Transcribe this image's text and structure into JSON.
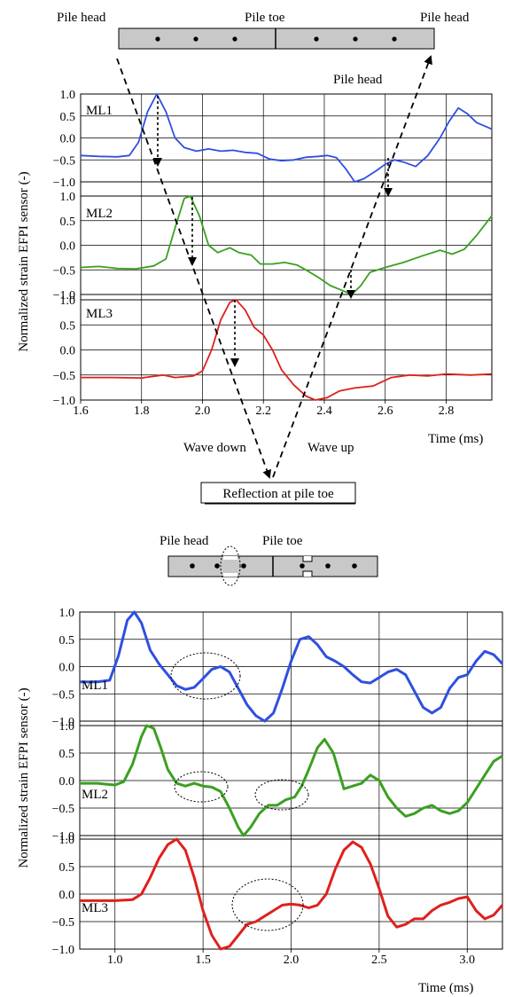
{
  "chart_data": [
    {
      "type": "line",
      "panel": "top",
      "labels": {
        "pile_head_left": "Pile head",
        "pile_toe": "Pile toe",
        "pile_head_right": "Pile head",
        "pile_head_upper": "Pile head",
        "wave_down": "Wave down",
        "wave_up": "Wave up",
        "reflection": "Reflection at pile toe"
      },
      "ylabel": "Normalized strain EFPI sensor (-)",
      "xlabel": "Time (ms)",
      "xlim": [
        1.6,
        2.95
      ],
      "x_ticks": [
        {
          "v": 1.6,
          "label": "1.6"
        },
        {
          "v": 1.8,
          "label": "1.8"
        },
        {
          "v": 2.0,
          "label": "2.0"
        },
        {
          "v": 2.2,
          "label": "2.2"
        },
        {
          "v": 2.4,
          "label": "2.4"
        },
        {
          "v": 2.6,
          "label": "2.6"
        },
        {
          "v": 2.8,
          "label": "2.8"
        }
      ],
      "y_tick_labels": [
        "1.0",
        "0.5",
        "0.0",
        "−0.5",
        "−1.0"
      ],
      "grid": true,
      "series": [
        {
          "name": "ML1",
          "color": "#2f4fe0",
          "points": [
            [
              1.6,
              -0.4
            ],
            [
              1.66,
              -0.42
            ],
            [
              1.72,
              -0.43
            ],
            [
              1.76,
              -0.4
            ],
            [
              1.79,
              -0.1
            ],
            [
              1.82,
              0.6
            ],
            [
              1.85,
              1.0
            ],
            [
              1.88,
              0.6
            ],
            [
              1.91,
              0.0
            ],
            [
              1.94,
              -0.22
            ],
            [
              1.98,
              -0.3
            ],
            [
              2.02,
              -0.25
            ],
            [
              2.06,
              -0.3
            ],
            [
              2.1,
              -0.28
            ],
            [
              2.14,
              -0.33
            ],
            [
              2.18,
              -0.35
            ],
            [
              2.22,
              -0.48
            ],
            [
              2.26,
              -0.52
            ],
            [
              2.3,
              -0.5
            ],
            [
              2.34,
              -0.44
            ],
            [
              2.38,
              -0.42
            ],
            [
              2.41,
              -0.4
            ],
            [
              2.44,
              -0.45
            ],
            [
              2.47,
              -0.7
            ],
            [
              2.5,
              -1.0
            ],
            [
              2.53,
              -0.93
            ],
            [
              2.57,
              -0.75
            ],
            [
              2.6,
              -0.6
            ],
            [
              2.63,
              -0.5
            ],
            [
              2.66,
              -0.55
            ],
            [
              2.7,
              -0.65
            ],
            [
              2.74,
              -0.4
            ],
            [
              2.78,
              0.0
            ],
            [
              2.81,
              0.38
            ],
            [
              2.84,
              0.68
            ],
            [
              2.87,
              0.55
            ],
            [
              2.9,
              0.35
            ],
            [
              2.95,
              0.2
            ]
          ]
        },
        {
          "name": "ML2",
          "color": "#3aa020",
          "points": [
            [
              1.6,
              -0.45
            ],
            [
              1.66,
              -0.43
            ],
            [
              1.72,
              -0.47
            ],
            [
              1.78,
              -0.48
            ],
            [
              1.84,
              -0.42
            ],
            [
              1.88,
              -0.28
            ],
            [
              1.91,
              0.35
            ],
            [
              1.94,
              0.95
            ],
            [
              1.96,
              1.0
            ],
            [
              1.99,
              0.6
            ],
            [
              2.02,
              0.0
            ],
            [
              2.05,
              -0.15
            ],
            [
              2.09,
              -0.05
            ],
            [
              2.12,
              -0.15
            ],
            [
              2.16,
              -0.2
            ],
            [
              2.19,
              -0.38
            ],
            [
              2.23,
              -0.38
            ],
            [
              2.27,
              -0.35
            ],
            [
              2.31,
              -0.4
            ],
            [
              2.34,
              -0.5
            ],
            [
              2.38,
              -0.65
            ],
            [
              2.42,
              -0.82
            ],
            [
              2.46,
              -0.92
            ],
            [
              2.49,
              -1.0
            ],
            [
              2.52,
              -0.82
            ],
            [
              2.55,
              -0.55
            ],
            [
              2.6,
              -0.45
            ],
            [
              2.66,
              -0.35
            ],
            [
              2.72,
              -0.22
            ],
            [
              2.78,
              -0.1
            ],
            [
              2.82,
              -0.18
            ],
            [
              2.86,
              -0.08
            ],
            [
              2.9,
              0.2
            ],
            [
              2.95,
              0.6
            ]
          ]
        },
        {
          "name": "ML3",
          "color": "#e0201c",
          "points": [
            [
              1.6,
              -0.55
            ],
            [
              1.7,
              -0.55
            ],
            [
              1.8,
              -0.56
            ],
            [
              1.87,
              -0.5
            ],
            [
              1.91,
              -0.55
            ],
            [
              1.97,
              -0.52
            ],
            [
              2.0,
              -0.42
            ],
            [
              2.03,
              0.0
            ],
            [
              2.06,
              0.6
            ],
            [
              2.09,
              0.95
            ],
            [
              2.11,
              1.0
            ],
            [
              2.14,
              0.8
            ],
            [
              2.17,
              0.45
            ],
            [
              2.2,
              0.3
            ],
            [
              2.23,
              0.0
            ],
            [
              2.26,
              -0.4
            ],
            [
              2.3,
              -0.7
            ],
            [
              2.34,
              -0.92
            ],
            [
              2.37,
              -1.0
            ],
            [
              2.41,
              -0.95
            ],
            [
              2.45,
              -0.82
            ],
            [
              2.5,
              -0.76
            ],
            [
              2.56,
              -0.72
            ],
            [
              2.62,
              -0.55
            ],
            [
              2.68,
              -0.5
            ],
            [
              2.74,
              -0.52
            ],
            [
              2.8,
              -0.48
            ],
            [
              2.88,
              -0.5
            ],
            [
              2.95,
              -0.48
            ]
          ]
        }
      ]
    },
    {
      "type": "line",
      "panel": "bottom",
      "labels": {
        "pile_head": "Pile head",
        "pile_toe": "Pile toe"
      },
      "ylabel": "Normalized strain EFPI sensor (-)",
      "xlabel": "Time (ms)",
      "xlim": [
        0.8,
        3.2
      ],
      "x_ticks": [
        {
          "v": 1.0,
          "label": "1.0"
        },
        {
          "v": 1.5,
          "label": "1.5"
        },
        {
          "v": 2.0,
          "label": "2.0"
        },
        {
          "v": 2.5,
          "label": "2.5"
        },
        {
          "v": 3.0,
          "label": "3.0"
        }
      ],
      "y_tick_labels": [
        "1.0",
        "0.5",
        "0.0",
        "−0.5",
        "−1.0"
      ],
      "grid": true,
      "series": [
        {
          "name": "ML1",
          "color": "#2f4fe0",
          "points": [
            [
              0.8,
              -0.28
            ],
            [
              0.9,
              -0.28
            ],
            [
              0.97,
              -0.25
            ],
            [
              1.02,
              0.2
            ],
            [
              1.07,
              0.85
            ],
            [
              1.11,
              1.0
            ],
            [
              1.15,
              0.8
            ],
            [
              1.2,
              0.3
            ],
            [
              1.25,
              0.05
            ],
            [
              1.3,
              -0.15
            ],
            [
              1.35,
              -0.35
            ],
            [
              1.4,
              -0.42
            ],
            [
              1.45,
              -0.38
            ],
            [
              1.5,
              -0.22
            ],
            [
              1.55,
              -0.05
            ],
            [
              1.6,
              0.0
            ],
            [
              1.65,
              -0.1
            ],
            [
              1.7,
              -0.4
            ],
            [
              1.75,
              -0.7
            ],
            [
              1.8,
              -0.9
            ],
            [
              1.85,
              -1.0
            ],
            [
              1.9,
              -0.85
            ],
            [
              1.95,
              -0.4
            ],
            [
              2.0,
              0.1
            ],
            [
              2.05,
              0.5
            ],
            [
              2.1,
              0.55
            ],
            [
              2.15,
              0.4
            ],
            [
              2.2,
              0.18
            ],
            [
              2.25,
              0.1
            ],
            [
              2.3,
              0.0
            ],
            [
              2.35,
              -0.15
            ],
            [
              2.4,
              -0.28
            ],
            [
              2.45,
              -0.3
            ],
            [
              2.5,
              -0.2
            ],
            [
              2.55,
              -0.1
            ],
            [
              2.6,
              -0.05
            ],
            [
              2.65,
              -0.15
            ],
            [
              2.7,
              -0.45
            ],
            [
              2.75,
              -0.75
            ],
            [
              2.8,
              -0.85
            ],
            [
              2.85,
              -0.75
            ],
            [
              2.9,
              -0.4
            ],
            [
              2.95,
              -0.2
            ],
            [
              3.0,
              -0.15
            ],
            [
              3.05,
              0.1
            ],
            [
              3.1,
              0.28
            ],
            [
              3.15,
              0.22
            ],
            [
              3.2,
              0.05
            ]
          ]
        },
        {
          "name": "ML2",
          "color": "#3aa020",
          "points": [
            [
              0.8,
              -0.05
            ],
            [
              0.9,
              -0.05
            ],
            [
              1.0,
              -0.08
            ],
            [
              1.05,
              -0.02
            ],
            [
              1.1,
              0.3
            ],
            [
              1.15,
              0.8
            ],
            [
              1.18,
              1.0
            ],
            [
              1.22,
              0.95
            ],
            [
              1.26,
              0.6
            ],
            [
              1.3,
              0.2
            ],
            [
              1.35,
              -0.05
            ],
            [
              1.4,
              -0.1
            ],
            [
              1.45,
              -0.05
            ],
            [
              1.5,
              -0.1
            ],
            [
              1.55,
              -0.12
            ],
            [
              1.6,
              -0.2
            ],
            [
              1.65,
              -0.5
            ],
            [
              1.7,
              -0.85
            ],
            [
              1.73,
              -1.0
            ],
            [
              1.77,
              -0.85
            ],
            [
              1.82,
              -0.6
            ],
            [
              1.87,
              -0.45
            ],
            [
              1.92,
              -0.45
            ],
            [
              1.97,
              -0.35
            ],
            [
              2.02,
              -0.3
            ],
            [
              2.06,
              -0.1
            ],
            [
              2.1,
              0.2
            ],
            [
              2.15,
              0.6
            ],
            [
              2.19,
              0.75
            ],
            [
              2.24,
              0.5
            ],
            [
              2.3,
              -0.15
            ],
            [
              2.35,
              -0.1
            ],
            [
              2.4,
              -0.05
            ],
            [
              2.45,
              0.1
            ],
            [
              2.5,
              0.0
            ],
            [
              2.55,
              -0.3
            ],
            [
              2.6,
              -0.5
            ],
            [
              2.65,
              -0.65
            ],
            [
              2.7,
              -0.6
            ],
            [
              2.75,
              -0.5
            ],
            [
              2.8,
              -0.45
            ],
            [
              2.85,
              -0.55
            ],
            [
              2.9,
              -0.6
            ],
            [
              2.95,
              -0.55
            ],
            [
              3.0,
              -0.4
            ],
            [
              3.05,
              -0.15
            ],
            [
              3.1,
              0.1
            ],
            [
              3.15,
              0.35
            ],
            [
              3.2,
              0.45
            ]
          ]
        },
        {
          "name": "ML3",
          "color": "#e0201c",
          "points": [
            [
              0.8,
              -0.12
            ],
            [
              0.9,
              -0.12
            ],
            [
              1.0,
              -0.12
            ],
            [
              1.1,
              -0.1
            ],
            [
              1.15,
              0.0
            ],
            [
              1.2,
              0.3
            ],
            [
              1.25,
              0.65
            ],
            [
              1.3,
              0.9
            ],
            [
              1.35,
              1.0
            ],
            [
              1.4,
              0.8
            ],
            [
              1.45,
              0.3
            ],
            [
              1.5,
              -0.3
            ],
            [
              1.55,
              -0.75
            ],
            [
              1.6,
              -1.0
            ],
            [
              1.65,
              -0.95
            ],
            [
              1.7,
              -0.75
            ],
            [
              1.75,
              -0.55
            ],
            [
              1.8,
              -0.5
            ],
            [
              1.85,
              -0.4
            ],
            [
              1.9,
              -0.3
            ],
            [
              1.95,
              -0.2
            ],
            [
              2.0,
              -0.18
            ],
            [
              2.05,
              -0.2
            ],
            [
              2.1,
              -0.25
            ],
            [
              2.15,
              -0.2
            ],
            [
              2.2,
              0.0
            ],
            [
              2.25,
              0.45
            ],
            [
              2.3,
              0.8
            ],
            [
              2.35,
              0.95
            ],
            [
              2.4,
              0.85
            ],
            [
              2.45,
              0.55
            ],
            [
              2.5,
              0.1
            ],
            [
              2.55,
              -0.4
            ],
            [
              2.6,
              -0.6
            ],
            [
              2.65,
              -0.55
            ],
            [
              2.7,
              -0.45
            ],
            [
              2.75,
              -0.45
            ],
            [
              2.8,
              -0.3
            ],
            [
              2.85,
              -0.2
            ],
            [
              2.9,
              -0.15
            ],
            [
              2.95,
              -0.08
            ],
            [
              3.0,
              -0.05
            ],
            [
              3.05,
              -0.3
            ],
            [
              3.1,
              -0.45
            ],
            [
              3.15,
              -0.38
            ],
            [
              3.2,
              -0.2
            ]
          ]
        }
      ]
    }
  ]
}
